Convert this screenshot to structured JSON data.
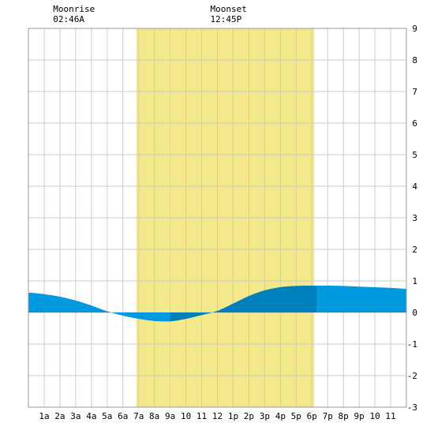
{
  "chart_data": {
    "type": "area",
    "x_ticks": [
      "1a",
      "2a",
      "3a",
      "4a",
      "5a",
      "6a",
      "7a",
      "8a",
      "9a",
      "10",
      "11",
      "12",
      "1p",
      "2p",
      "3p",
      "4p",
      "5p",
      "6p",
      "7p",
      "8p",
      "9p",
      "10",
      "11"
    ],
    "y_ticks": [
      "9",
      "8",
      "7",
      "6",
      "5",
      "4",
      "3",
      "2",
      "1",
      "0",
      "-1",
      "-2",
      "-3"
    ],
    "ylim": [
      -3,
      9
    ],
    "xlim": [
      0,
      24
    ],
    "grid": true,
    "daylight_hours": [
      6.85,
      18.15
    ],
    "annotations": [
      {
        "label": "Moonrise",
        "time": "02:46A",
        "hour": 2.77
      },
      {
        "label": "Moonset",
        "time": "12:45P",
        "hour": 12.75
      }
    ],
    "series": [
      {
        "x": [
          0,
          1,
          2,
          3,
          4,
          5,
          6,
          7,
          8,
          9,
          10,
          11,
          12,
          13,
          14,
          15,
          16,
          17,
          18,
          19,
          20,
          21,
          22,
          23,
          24
        ],
        "values": [
          0.63,
          0.58,
          0.5,
          0.38,
          0.22,
          0.04,
          -0.1,
          -0.2,
          -0.27,
          -0.28,
          -0.2,
          -0.08,
          0.05,
          0.28,
          0.52,
          0.7,
          0.8,
          0.84,
          0.85,
          0.85,
          0.84,
          0.82,
          0.8,
          0.78,
          0.75
        ]
      }
    ],
    "colors": {
      "tide": "#0099dd",
      "tide_dark": "#0080bb",
      "daylight": "#f3e88a",
      "grid": "#cccccc"
    }
  }
}
